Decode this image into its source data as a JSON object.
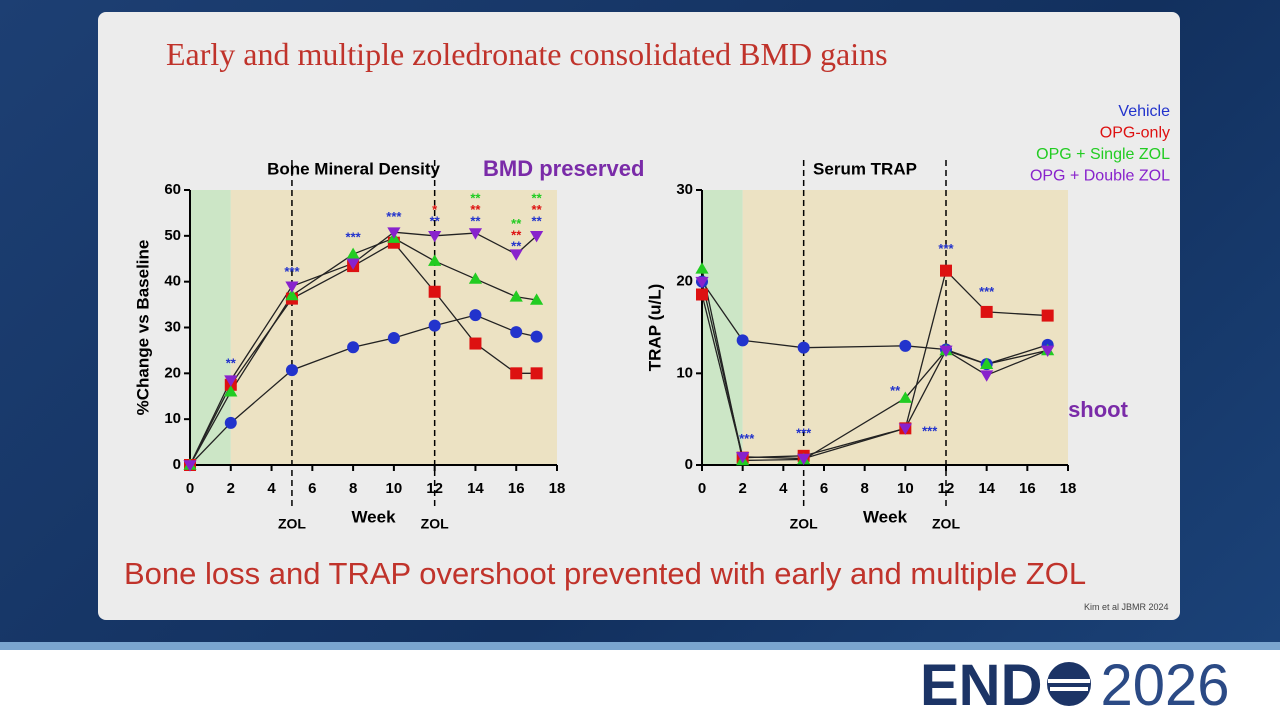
{
  "slide": {
    "title": "Early and multiple zoledronate consolidated BMD gains",
    "footer": "Bone loss and TRAP overshoot prevented with early and multiple ZOL",
    "citation": "Kim et al JBMR 2024",
    "notes": [
      "BMD preserved",
      "TRAP overshoot prevented"
    ],
    "logo": [
      "END",
      "2026"
    ]
  },
  "chart_data": [
    {
      "type": "line",
      "title": "Bone Mineral Density",
      "x_label": "Week",
      "y_label": "%Change vs Baseline",
      "x": [
        0,
        2,
        5,
        8,
        10,
        12,
        14,
        16,
        17
      ],
      "xlim": [
        0,
        18
      ],
      "xticks": [
        0,
        2,
        4,
        6,
        8,
        10,
        12,
        14,
        16,
        18
      ],
      "ylim": [
        0,
        60
      ],
      "yticks": [
        0,
        10,
        20,
        30,
        40,
        50,
        60
      ],
      "bands": [
        {
          "range": [
            0,
            2
          ],
          "color": "#cce6c6"
        },
        {
          "range": [
            2,
            18
          ],
          "color": "#ece2c3"
        }
      ],
      "vlines": [
        {
          "x": 5,
          "label": "ZOL"
        },
        {
          "x": 12,
          "label": "ZOL"
        }
      ],
      "series": [
        {
          "name": "Vehicle",
          "color": "#2233cc",
          "marker": "circle",
          "values": [
            0,
            9.2,
            20.7,
            25.7,
            27.7,
            30.4,
            32.7,
            29,
            28
          ]
        },
        {
          "name": "OPG-only",
          "color": "#dd1111",
          "marker": "square",
          "values": [
            0,
            17.5,
            36.3,
            43.4,
            48.5,
            37.8,
            26.5,
            20,
            20
          ]
        },
        {
          "name": "OPG + Single ZOL",
          "color": "#22cc22",
          "marker": "triangle",
          "values": [
            0,
            16,
            37,
            46,
            49.5,
            44.5,
            40.6,
            36.7,
            36
          ]
        },
        {
          "name": "OPG + Double ZOL",
          "color": "#8822cc",
          "marker": "triangle-down",
          "values": [
            0,
            18.5,
            39,
            44,
            50.8,
            50,
            50.6,
            46,
            50
          ]
        }
      ],
      "annotations": [
        {
          "text": "**",
          "x": 2,
          "y": 22,
          "color": "#2233cc"
        },
        {
          "text": "***",
          "x": 5,
          "y": 42,
          "color": "#2233cc"
        },
        {
          "text": "***",
          "x": 8,
          "y": 49.5,
          "color": "#2233cc"
        },
        {
          "text": "***",
          "x": 10,
          "y": 54,
          "color": "#2233cc"
        },
        {
          "text": "*",
          "x": 12,
          "y": 55.5,
          "color": "#dd1111"
        },
        {
          "text": "**",
          "x": 12,
          "y": 53,
          "color": "#2233cc"
        },
        {
          "text": "**",
          "x": 14,
          "y": 58,
          "color": "#22cc22"
        },
        {
          "text": "**",
          "x": 14,
          "y": 55.5,
          "color": "#dd1111"
        },
        {
          "text": "**",
          "x": 14,
          "y": 53,
          "color": "#2233cc"
        },
        {
          "text": "**",
          "x": 16,
          "y": 52.5,
          "color": "#22cc22"
        },
        {
          "text": "**",
          "x": 16,
          "y": 50,
          "color": "#dd1111"
        },
        {
          "text": "**",
          "x": 16,
          "y": 47.5,
          "color": "#2233cc"
        },
        {
          "text": "**",
          "x": 17,
          "y": 58,
          "color": "#22cc22"
        },
        {
          "text": "**",
          "x": 17,
          "y": 55.5,
          "color": "#dd1111"
        },
        {
          "text": "**",
          "x": 17,
          "y": 53,
          "color": "#2233cc"
        }
      ]
    },
    {
      "type": "line",
      "title": "Serum TRAP",
      "x_label": "Week",
      "y_label": "TRAP (u/L)",
      "x": [
        0,
        2,
        5,
        10,
        12,
        14,
        17
      ],
      "xlim": [
        0,
        18
      ],
      "xticks": [
        0,
        2,
        4,
        6,
        8,
        10,
        12,
        14,
        16,
        18
      ],
      "ylim": [
        0,
        30
      ],
      "yticks": [
        0,
        10,
        20,
        30
      ],
      "bands": [
        {
          "range": [
            0,
            2
          ],
          "color": "#cce6c6"
        },
        {
          "range": [
            2,
            18
          ],
          "color": "#ece2c3"
        }
      ],
      "vlines": [
        {
          "x": 5,
          "label": "ZOL"
        },
        {
          "x": 12,
          "label": "ZOL"
        }
      ],
      "series": [
        {
          "name": "Vehicle",
          "color": "#2233cc",
          "marker": "circle",
          "values": [
            20,
            13.6,
            12.8,
            13,
            12.6,
            11,
            13.1
          ]
        },
        {
          "name": "OPG-only",
          "color": "#dd1111",
          "marker": "square",
          "values": [
            18.6,
            0.8,
            1,
            4,
            21.2,
            16.7,
            16.3
          ]
        },
        {
          "name": "OPG + Single ZOL",
          "color": "#22cc22",
          "marker": "triangle",
          "values": [
            21.4,
            0.5,
            0.6,
            7.3,
            12.5,
            11,
            12.5
          ]
        },
        {
          "name": "OPG + Double ZOL",
          "color": "#8822cc",
          "marker": "triangle-down",
          "values": [
            20,
            0.9,
            0.7,
            4,
            12.5,
            9.8,
            12.5
          ]
        }
      ],
      "annotations": [
        {
          "text": "***",
          "x": 2.2,
          "y": 2.8,
          "color": "#2233cc"
        },
        {
          "text": "***",
          "x": 5,
          "y": 3.4,
          "color": "#2233cc"
        },
        {
          "text": "**",
          "x": 9.5,
          "y": 8,
          "color": "#2233cc"
        },
        {
          "text": "***",
          "x": 11.2,
          "y": 3.6,
          "color": "#2233cc"
        },
        {
          "text": "***",
          "x": 12,
          "y": 23.5,
          "color": "#2233cc"
        },
        {
          "text": "***",
          "x": 14,
          "y": 18.8,
          "color": "#2233cc"
        }
      ]
    }
  ]
}
